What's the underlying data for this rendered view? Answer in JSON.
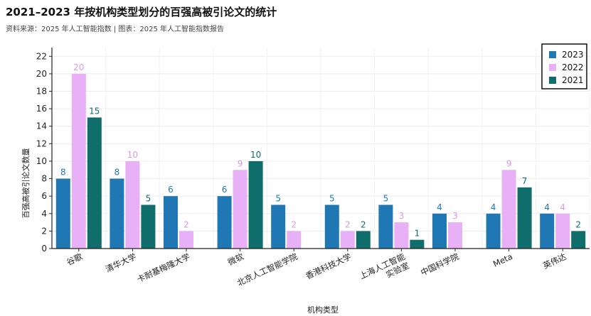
{
  "header": {
    "title": "2021–2023 年按机构类型划分的百强高被引论文的统计",
    "subtitle": "资料来源：2025 年人工智能指数 | 图表：2025 年人工智能指数报告"
  },
  "chart_data": {
    "type": "bar",
    "categories": [
      "谷歌",
      "清华大学",
      "卡耐基梅隆大学",
      "微软",
      "北京人工智能学院",
      "香港科技大学",
      "上海人工智能\n实验室",
      "中国科学院",
      "Meta",
      "英伟达"
    ],
    "series": [
      {
        "name": "2023",
        "color": "#1f77b4",
        "values": [
          8,
          8,
          6,
          6,
          5,
          5,
          5,
          4,
          4,
          4
        ]
      },
      {
        "name": "2022",
        "color": "#e8b0f7",
        "values": [
          20,
          10,
          2,
          9,
          2,
          2,
          3,
          3,
          9,
          4
        ]
      },
      {
        "name": "2021",
        "color": "#0f6e6b",
        "values": [
          15,
          5,
          0,
          10,
          0,
          2,
          1,
          0,
          7,
          2
        ]
      }
    ],
    "xlabel": "机构类型",
    "ylabel": "百强高被引论文数量",
    "ylim": [
      0,
      23
    ],
    "yticks": [
      0,
      2,
      4,
      6,
      8,
      10,
      12,
      14,
      16,
      18,
      20,
      22
    ],
    "grid": true,
    "legend_position": "top-right"
  }
}
